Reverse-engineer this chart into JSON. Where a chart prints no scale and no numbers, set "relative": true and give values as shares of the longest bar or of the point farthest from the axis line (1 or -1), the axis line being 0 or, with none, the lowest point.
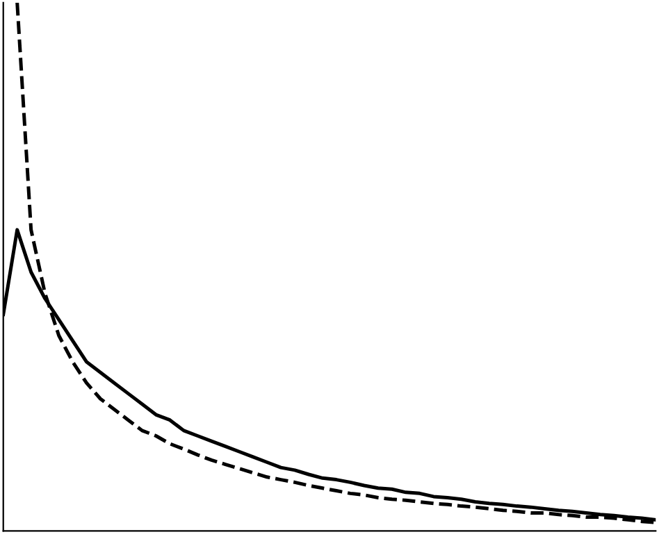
{
  "chart_data": {
    "type": "line",
    "relative": true,
    "legend": false,
    "grid": false,
    "marker": "none",
    "categories": [
      null,
      null,
      null,
      null,
      null,
      null,
      null,
      null,
      null,
      null,
      null,
      null,
      null,
      null,
      null,
      null,
      null,
      null,
      null,
      null,
      null,
      null,
      null,
      null,
      null,
      null,
      null,
      null,
      null,
      null,
      null,
      null,
      null,
      null,
      null,
      null,
      null,
      null,
      null,
      null,
      null,
      null,
      null,
      null,
      null,
      null,
      null,
      null
    ],
    "series": [
      {
        "color": "#000000",
        "line_style": "solid",
        "values": [
          0.41,
          0.57,
          0.49,
          0.44,
          0.4,
          0.36,
          0.32,
          0.3,
          0.28,
          0.26,
          0.24,
          0.22,
          0.21,
          0.19,
          0.18,
          0.17,
          0.16,
          0.15,
          0.14,
          0.13,
          0.12,
          0.115,
          0.107,
          0.1,
          0.097,
          0.092,
          0.086,
          0.081,
          0.079,
          0.073,
          0.071,
          0.065,
          0.063,
          0.06,
          0.055,
          0.052,
          0.05,
          0.047,
          0.045,
          0.042,
          0.039,
          0.037,
          0.034,
          0.031,
          0.029,
          0.026,
          0.024,
          0.021
        ]
      },
      {
        "color": "#000000",
        "line_style": "dashed",
        "values": [
          null,
          1.0,
          0.57,
          0.45,
          0.37,
          0.32,
          0.28,
          0.25,
          0.23,
          0.21,
          0.19,
          0.18,
          0.165,
          0.155,
          0.144,
          0.134,
          0.126,
          0.118,
          0.11,
          0.102,
          0.097,
          0.092,
          0.086,
          0.081,
          0.076,
          0.071,
          0.068,
          0.063,
          0.06,
          0.058,
          0.055,
          0.052,
          0.05,
          0.047,
          0.045,
          0.042,
          0.039,
          0.037,
          0.034,
          0.034,
          0.031,
          0.029,
          0.026,
          0.026,
          0.024,
          0.021,
          0.018,
          0.016
        ]
      }
    ]
  }
}
